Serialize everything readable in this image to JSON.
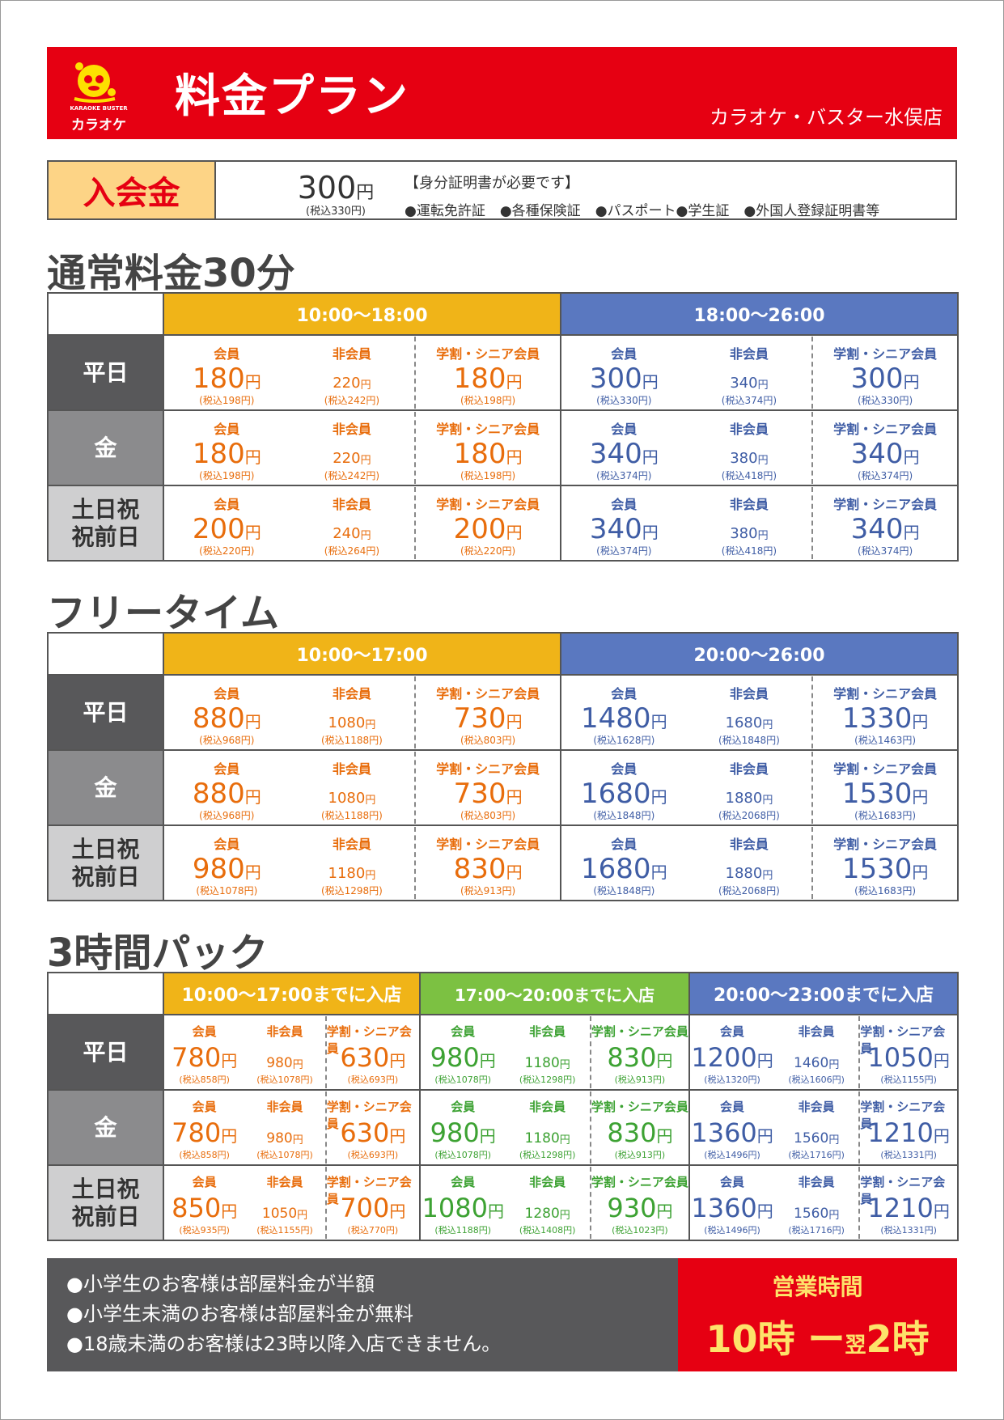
{
  "header": {
    "brand_label": "KARAOKE BUSTER",
    "brand_kana": "カラオケ",
    "title": "料金プラン",
    "store": "カラオケ・バスター水俣店"
  },
  "entry_fee": {
    "label": "入会金",
    "price": "300",
    "yen": "円",
    "tax": "(税込330円)",
    "note_title": "【身分証明書が必要です】",
    "ids": [
      "●運転免許証",
      "●各種保険証",
      "●パスポート●学生証",
      "●外国人登録証明書等"
    ]
  },
  "labels": {
    "member": "会員",
    "nonmember": "非会員",
    "student": "学割・シニア会員",
    "yen": "円"
  },
  "days": [
    "平日",
    "金",
    "土日祝\n祝前日"
  ],
  "sections": {
    "s30": {
      "title": "通常料金30分",
      "periods": [
        {
          "header": "10:00〜18:00",
          "color": "#f0b418",
          "rows": [
            {
              "m": "180",
              "mt": "(税込198円)",
              "n": "220",
              "nt": "(税込242円)",
              "s": "180",
              "st": "(税込198円)"
            },
            {
              "m": "180",
              "mt": "(税込198円)",
              "n": "220",
              "nt": "(税込242円)",
              "s": "180",
              "st": "(税込198円)"
            },
            {
              "m": "200",
              "mt": "(税込220円)",
              "n": "240",
              "nt": "(税込264円)",
              "s": "200",
              "st": "(税込220円)"
            }
          ]
        },
        {
          "header": "18:00〜26:00",
          "color": "#5a78c0",
          "rows": [
            {
              "m": "300",
              "mt": "(税込330円)",
              "n": "340",
              "nt": "(税込374円)",
              "s": "300",
              "st": "(税込330円)"
            },
            {
              "m": "340",
              "mt": "(税込374円)",
              "n": "380",
              "nt": "(税込418円)",
              "s": "340",
              "st": "(税込374円)"
            },
            {
              "m": "340",
              "mt": "(税込374円)",
              "n": "380",
              "nt": "(税込418円)",
              "s": "340",
              "st": "(税込374円)"
            }
          ]
        }
      ]
    },
    "free": {
      "title": "フリータイム",
      "periods": [
        {
          "header": "10:00〜17:00",
          "color": "#f0b418",
          "rows": [
            {
              "m": "880",
              "mt": "(税込968円)",
              "n": "1080",
              "nt": "(税込1188円)",
              "s": "730",
              "st": "(税込803円)"
            },
            {
              "m": "880",
              "mt": "(税込968円)",
              "n": "1080",
              "nt": "(税込1188円)",
              "s": "730",
              "st": "(税込803円)"
            },
            {
              "m": "980",
              "mt": "(税込1078円)",
              "n": "1180",
              "nt": "(税込1298円)",
              "s": "830",
              "st": "(税込913円)"
            }
          ]
        },
        {
          "header": "20:00〜26:00",
          "color": "#5a78c0",
          "rows": [
            {
              "m": "1480",
              "mt": "(税込1628円)",
              "n": "1680",
              "nt": "(税込1848円)",
              "s": "1330",
              "st": "(税込1463円)"
            },
            {
              "m": "1680",
              "mt": "(税込1848円)",
              "n": "1880",
              "nt": "(税込2068円)",
              "s": "1530",
              "st": "(税込1683円)"
            },
            {
              "m": "1680",
              "mt": "(税込1848円)",
              "n": "1880",
              "nt": "(税込2068円)",
              "s": "1530",
              "st": "(税込1683円)"
            }
          ]
        }
      ]
    },
    "pack": {
      "title": "3時間パック",
      "periods": [
        {
          "header": "10:00〜17:00までに入店",
          "color": "#f0b418",
          "rows": [
            {
              "m": "780",
              "mt": "(税込858円)",
              "n": "980",
              "nt": "(税込1078円)",
              "s": "630",
              "st": "(税込693円)"
            },
            {
              "m": "780",
              "mt": "(税込858円)",
              "n": "980",
              "nt": "(税込1078円)",
              "s": "630",
              "st": "(税込693円)"
            },
            {
              "m": "850",
              "mt": "(税込935円)",
              "n": "1050",
              "nt": "(税込1155円)",
              "s": "700",
              "st": "(税込770円)"
            }
          ]
        },
        {
          "header": "17:00〜20:00までに入店",
          "color": "#7cc142",
          "rows": [
            {
              "m": "980",
              "mt": "(税込1078円)",
              "n": "1180",
              "nt": "(税込1298円)",
              "s": "830",
              "st": "(税込913円)"
            },
            {
              "m": "980",
              "mt": "(税込1078円)",
              "n": "1180",
              "nt": "(税込1298円)",
              "s": "830",
              "st": "(税込913円)"
            },
            {
              "m": "1080",
              "mt": "(税込1188円)",
              "n": "1280",
              "nt": "(税込1408円)",
              "s": "930",
              "st": "(税込1023円)"
            }
          ]
        },
        {
          "header": "20:00〜23:00までに入店",
          "color": "#5a78c0",
          "rows": [
            {
              "m": "1200",
              "mt": "(税込1320円)",
              "n": "1460",
              "nt": "(税込1606円)",
              "s": "1050",
              "st": "(税込1155円)"
            },
            {
              "m": "1360",
              "mt": "(税込1496円)",
              "n": "1560",
              "nt": "(税込1716円)",
              "s": "1210",
              "st": "(税込1331円)"
            },
            {
              "m": "1360",
              "mt": "(税込1496円)",
              "n": "1560",
              "nt": "(税込1716円)",
              "s": "1210",
              "st": "(税込1331円)"
            }
          ]
        }
      ]
    }
  },
  "footer": {
    "notes": [
      "●小学生のお客様は部屋料金が半額",
      "●小学生未満のお客様は部屋料金が無料",
      "●18歳未満のお客様は23時以降入店できません。"
    ],
    "hours_title": "営業時間",
    "hours_open": "10時",
    "hours_dash": "ー",
    "hours_next": "翌",
    "hours_close": "2時"
  }
}
